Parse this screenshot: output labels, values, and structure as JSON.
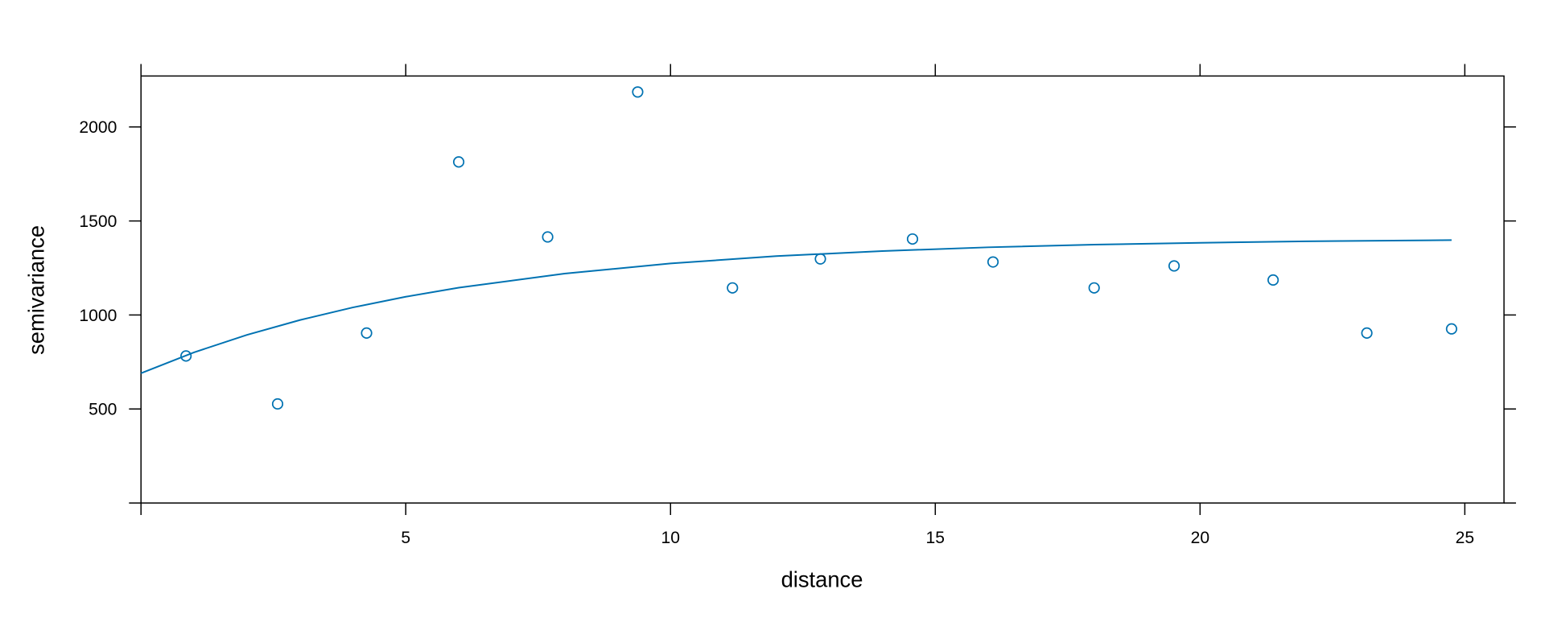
{
  "chart_data": {
    "type": "scatter",
    "x_label": "distance",
    "y_label": "semivariance",
    "xlim": [
      0,
      25.74
    ],
    "ylim": [
      0,
      2271
    ],
    "xticks": [
      5,
      10,
      15,
      20,
      25
    ],
    "yticks": [
      500,
      1000,
      1500,
      2000
    ],
    "grid": false,
    "series": [
      {
        "style": "points",
        "color": "#0072b2",
        "x": [
          0.85,
          2.58,
          4.26,
          6.0,
          7.68,
          9.38,
          11.17,
          12.83,
          14.57,
          16.09,
          18.0,
          19.51,
          21.38,
          23.15,
          24.75
        ],
        "values": [
          782,
          527,
          904,
          1814,
          1415,
          2186,
          1144,
          1298,
          1404,
          1282,
          1144,
          1261,
          1186,
          904,
          926
        ]
      },
      {
        "style": "line",
        "color": "#0072b2",
        "x": [
          0,
          1,
          2,
          3,
          4,
          5,
          6,
          8,
          10,
          12,
          14,
          16,
          18,
          20,
          22,
          24.75
        ],
        "values": [
          690,
          801,
          894,
          973,
          1040,
          1097,
          1145,
          1220,
          1274,
          1313,
          1340,
          1360,
          1374,
          1384,
          1392,
          1398
        ]
      }
    ]
  }
}
